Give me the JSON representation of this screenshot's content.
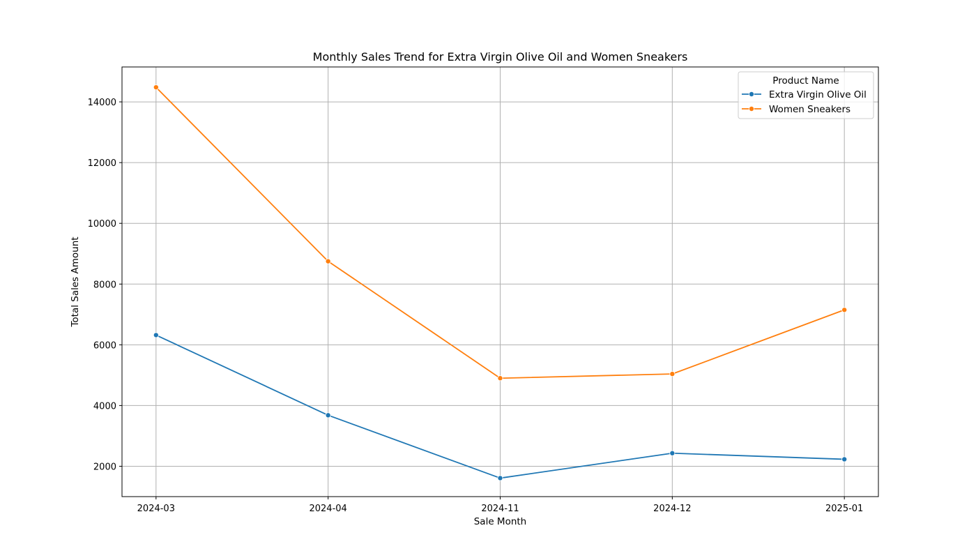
{
  "chart_data": {
    "type": "line",
    "title": "Monthly Sales Trend for Extra Virgin Olive Oil and Women Sneakers",
    "xlabel": "Sale Month",
    "ylabel": "Total Sales Amount",
    "categories": [
      "2024-03",
      "2024-04",
      "2024-11",
      "2024-12",
      "2025-01"
    ],
    "ylim": [
      1000,
      15150
    ],
    "yticks": [
      2000,
      4000,
      6000,
      8000,
      10000,
      12000,
      14000
    ],
    "grid": true,
    "legend": {
      "title": "Product Name",
      "placement": "top-right"
    },
    "series": [
      {
        "name": "Extra Virgin Olive Oil",
        "color": "#1f77b4",
        "values": [
          6320,
          3680,
          1610,
          2430,
          2230
        ]
      },
      {
        "name": "Women Sneakers",
        "color": "#ff7f0e",
        "values": [
          14480,
          8750,
          4900,
          5040,
          7150
        ]
      }
    ]
  }
}
